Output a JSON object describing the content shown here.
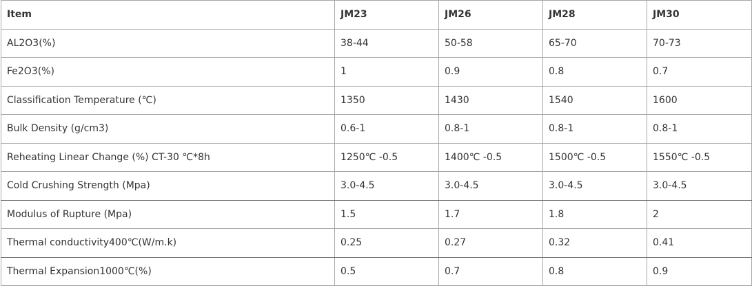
{
  "table": {
    "header": [
      "Item",
      "JM23",
      "JM26",
      "JM28",
      "JM30"
    ],
    "rows": [
      [
        "AL2O3(%)",
        "38-44",
        "50-58",
        "65-70",
        "70-73"
      ],
      [
        "Fe2O3(%)",
        "1",
        "0.9",
        "0.8",
        "0.7"
      ],
      [
        "Classification Temperature (℃)",
        "1350",
        "1430",
        "1540",
        "1600"
      ],
      [
        "Bulk Density (g/cm3)",
        "0.6-1",
        "0.8-1",
        "0.8-1",
        "0.8-1"
      ],
      [
        "Reheating Linear Change (%) CT-30 ℃*8h",
        "1250℃ -0.5",
        "1400℃ -0.5",
        "1500℃ -0.5",
        "1550℃ -0.5"
      ],
      [
        "Cold Crushing Strength (Mpa)",
        "3.0-4.5",
        "3.0-4.5",
        "3.0-4.5",
        "3.0-4.5"
      ],
      [
        "Modulus of Rupture (Mpa)",
        "1.5",
        "1.7",
        "1.8",
        "2"
      ],
      [
        "Thermal conductivity400℃(W/m.k)",
        "0.25",
        "0.27",
        "0.32",
        "0.41"
      ],
      [
        "Thermal Expansion1000℃(%)",
        "0.5",
        "0.7",
        "0.8",
        "0.9"
      ]
    ]
  }
}
